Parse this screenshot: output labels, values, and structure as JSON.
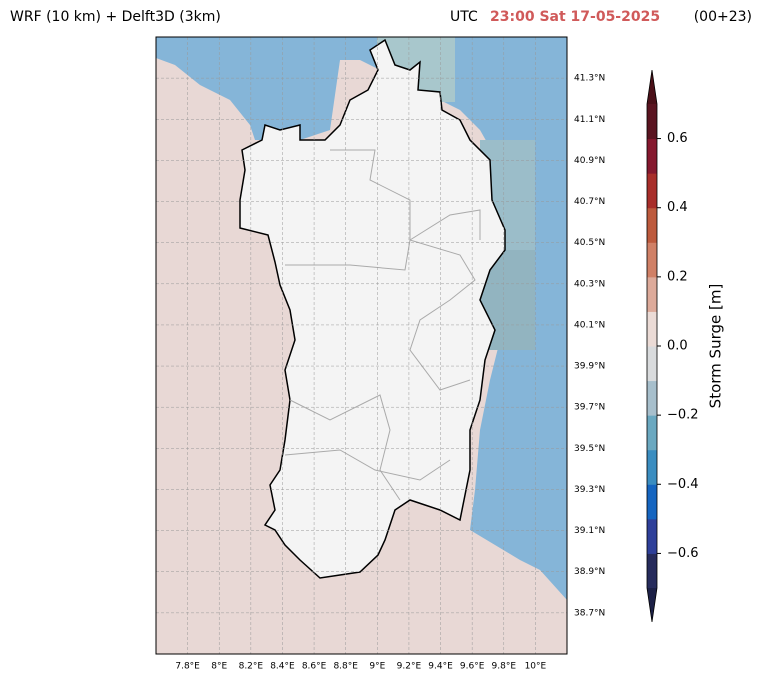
{
  "header": {
    "left": "WRF (10 km) + Delft3D (3km)",
    "utc": "UTC",
    "time": "23:00 Sat 17-05-2025",
    "run": "(00+23)"
  },
  "map": {
    "xlim": [
      7.6,
      10.2
    ],
    "ylim": [
      38.5,
      41.5
    ],
    "xticks": [
      {
        "value": 7.8,
        "label": "7.8°E"
      },
      {
        "value": 8,
        "label": "8°E"
      },
      {
        "value": 8.2,
        "label": "8.2°E"
      },
      {
        "value": 8.4,
        "label": "8.4°E"
      },
      {
        "value": 8.6,
        "label": "8.6°E"
      },
      {
        "value": 8.8,
        "label": "8.8°E"
      },
      {
        "value": 9,
        "label": "9°E"
      },
      {
        "value": 9.2,
        "label": "9.2°E"
      },
      {
        "value": 9.4,
        "label": "9.4°E"
      },
      {
        "value": 9.6,
        "label": "9.6°E"
      },
      {
        "value": 9.8,
        "label": "9.8°E"
      },
      {
        "value": 10,
        "label": "10°E"
      }
    ],
    "yticks": [
      {
        "value": 38.7,
        "label": "38.7°N"
      },
      {
        "value": 38.9,
        "label": "38.9°N"
      },
      {
        "value": 39.1,
        "label": "39.1°N"
      },
      {
        "value": 39.3,
        "label": "39.3°N"
      },
      {
        "value": 39.5,
        "label": "39.5°N"
      },
      {
        "value": 39.7,
        "label": "39.7°N"
      },
      {
        "value": 39.9,
        "label": "39.9°N"
      },
      {
        "value": 40.1,
        "label": "40.1°N"
      },
      {
        "value": 40.3,
        "label": "40.3°N"
      },
      {
        "value": 40.5,
        "label": "40.5°N"
      },
      {
        "value": 40.7,
        "label": "40.7°N"
      },
      {
        "value": 40.9,
        "label": "40.9°N"
      },
      {
        "value": 41.1,
        "label": "41.1°N"
      },
      {
        "value": 41.3,
        "label": "41.3°N"
      }
    ]
  },
  "colorbar": {
    "label": "Storm Surge [m]",
    "clim": [
      -0.7,
      0.7
    ],
    "ticks": [
      {
        "value": -0.6,
        "label": "−0.6"
      },
      {
        "value": -0.4,
        "label": "−0.4"
      },
      {
        "value": -0.2,
        "label": "−0.2"
      },
      {
        "value": 0,
        "label": "0.0"
      },
      0.2,
      0.4,
      0.6
    ],
    "colors": [
      "#262b5c",
      "#2e3f99",
      "#1565c0",
      "#3a8dc0",
      "#6aa8c0",
      "#a7bfcc",
      "#d9dbdd",
      "#ebdbd6",
      "#ddaa9a",
      "#d08066",
      "#bd5a3d",
      "#a82e2a",
      "#85182e",
      "#5a1420"
    ],
    "under": "#1c2046",
    "over": "#4a1018"
  }
}
